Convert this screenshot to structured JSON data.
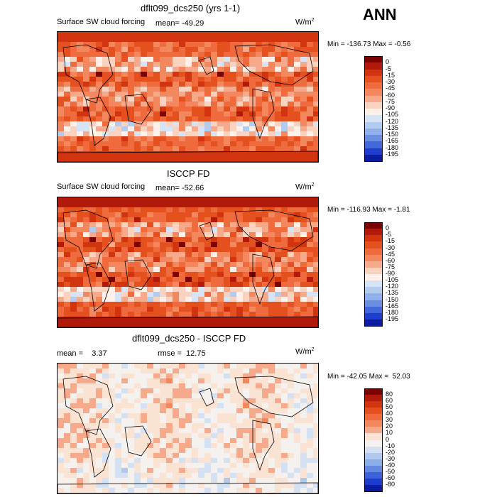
{
  "season_label": "ANN",
  "panels": [
    {
      "title": "dflt099_dcs250 (yrs 1-1)",
      "subtitle": "Surface SW cloud forcing",
      "mean_text": "mean= -49.29",
      "rmse_text": "",
      "units_base": "W/m",
      "units_exp": "2",
      "minmax_text": "Min = -136.73 Max =  -0.56",
      "levels": [
        "0",
        "-5",
        "-15",
        "-30",
        "-45",
        "-60",
        "-75",
        "-90",
        "-105",
        "-120",
        "-135",
        "-150",
        "-165",
        "-180",
        "-195"
      ],
      "colors": [
        "#7a0403",
        "#b11a0a",
        "#d2340f",
        "#e5501f",
        "#ef6a3c",
        "#f3875e",
        "#f6a98b",
        "#fad3c0",
        "#fff1e9",
        "#d7e4f5",
        "#b3cbef",
        "#8fb0ea",
        "#6a8ee2",
        "#4267da",
        "#1f3ed0",
        "#0b1ca3"
      ],
      "field": "control"
    },
    {
      "title": "ISCCP FD",
      "subtitle": "Surface SW cloud forcing",
      "mean_text": "mean= -52.66",
      "rmse_text": "",
      "units_base": "W/m",
      "units_exp": "2",
      "minmax_text": "Min = -116.93 Max =  -1.81",
      "levels": [
        "0",
        "-5",
        "-15",
        "-30",
        "-45",
        "-60",
        "-75",
        "-90",
        "-105",
        "-120",
        "-135",
        "-150",
        "-165",
        "-180",
        "-195"
      ],
      "colors": [
        "#7a0403",
        "#b11a0a",
        "#d2340f",
        "#e5501f",
        "#ef6a3c",
        "#f3875e",
        "#f6a98b",
        "#fad3c0",
        "#fff1e9",
        "#d7e4f5",
        "#b3cbef",
        "#8fb0ea",
        "#6a8ee2",
        "#4267da",
        "#1f3ed0",
        "#0b1ca3"
      ],
      "field": "obs"
    },
    {
      "title": "dflt099_dcs250 - ISCCP FD",
      "subtitle": "",
      "mean_text": "mean =    3.37",
      "rmse_text": "rmse =  12.75",
      "units_base": "W/m",
      "units_exp": "2",
      "minmax_text": "Min = -42.05 Max =  52.03",
      "levels": [
        "80",
        "60",
        "50",
        "40",
        "30",
        "20",
        "10",
        "0",
        "-10",
        "-20",
        "-30",
        "-40",
        "-50",
        "-60",
        "-80"
      ],
      "colors": [
        "#7a0403",
        "#b11a0a",
        "#d2340f",
        "#e5501f",
        "#ef6a3c",
        "#f3875e",
        "#f6a98b",
        "#fbe3d4",
        "#f4f1ef",
        "#d3e1f3",
        "#b0c8ee",
        "#8aaee9",
        "#6389e0",
        "#3b62d8",
        "#1c3ccb",
        "#0b1ca3"
      ],
      "field": "diff"
    }
  ],
  "chart_data": [
    {
      "type": "heatmap",
      "title": "dflt099_dcs250 (yrs 1-1)",
      "subtitle": "Surface SW cloud forcing",
      "units": "W/m2",
      "mean": -49.29,
      "min": -136.73,
      "max": -0.56,
      "contour_levels": [
        0,
        -5,
        -15,
        -30,
        -45,
        -60,
        -75,
        -90,
        -105,
        -120,
        -135,
        -150,
        -165,
        -180,
        -195
      ],
      "projection": "cylindrical equidistant, Pacific-centered"
    },
    {
      "type": "heatmap",
      "title": "ISCCP FD",
      "subtitle": "Surface SW cloud forcing",
      "units": "W/m2",
      "mean": -52.66,
      "min": -116.93,
      "max": -1.81,
      "contour_levels": [
        0,
        -5,
        -15,
        -30,
        -45,
        -60,
        -75,
        -90,
        -105,
        -120,
        -135,
        -150,
        -165,
        -180,
        -195
      ],
      "projection": "cylindrical equidistant, Pacific-centered"
    },
    {
      "type": "heatmap",
      "title": "dflt099_dcs250 - ISCCP FD",
      "units": "W/m2",
      "mean": 3.37,
      "rmse": 12.75,
      "min": -42.05,
      "max": 52.03,
      "contour_levels": [
        80,
        60,
        50,
        40,
        30,
        20,
        10,
        0,
        -10,
        -20,
        -30,
        -40,
        -50,
        -60,
        -80
      ],
      "projection": "cylindrical equidistant, Pacific-centered"
    }
  ]
}
